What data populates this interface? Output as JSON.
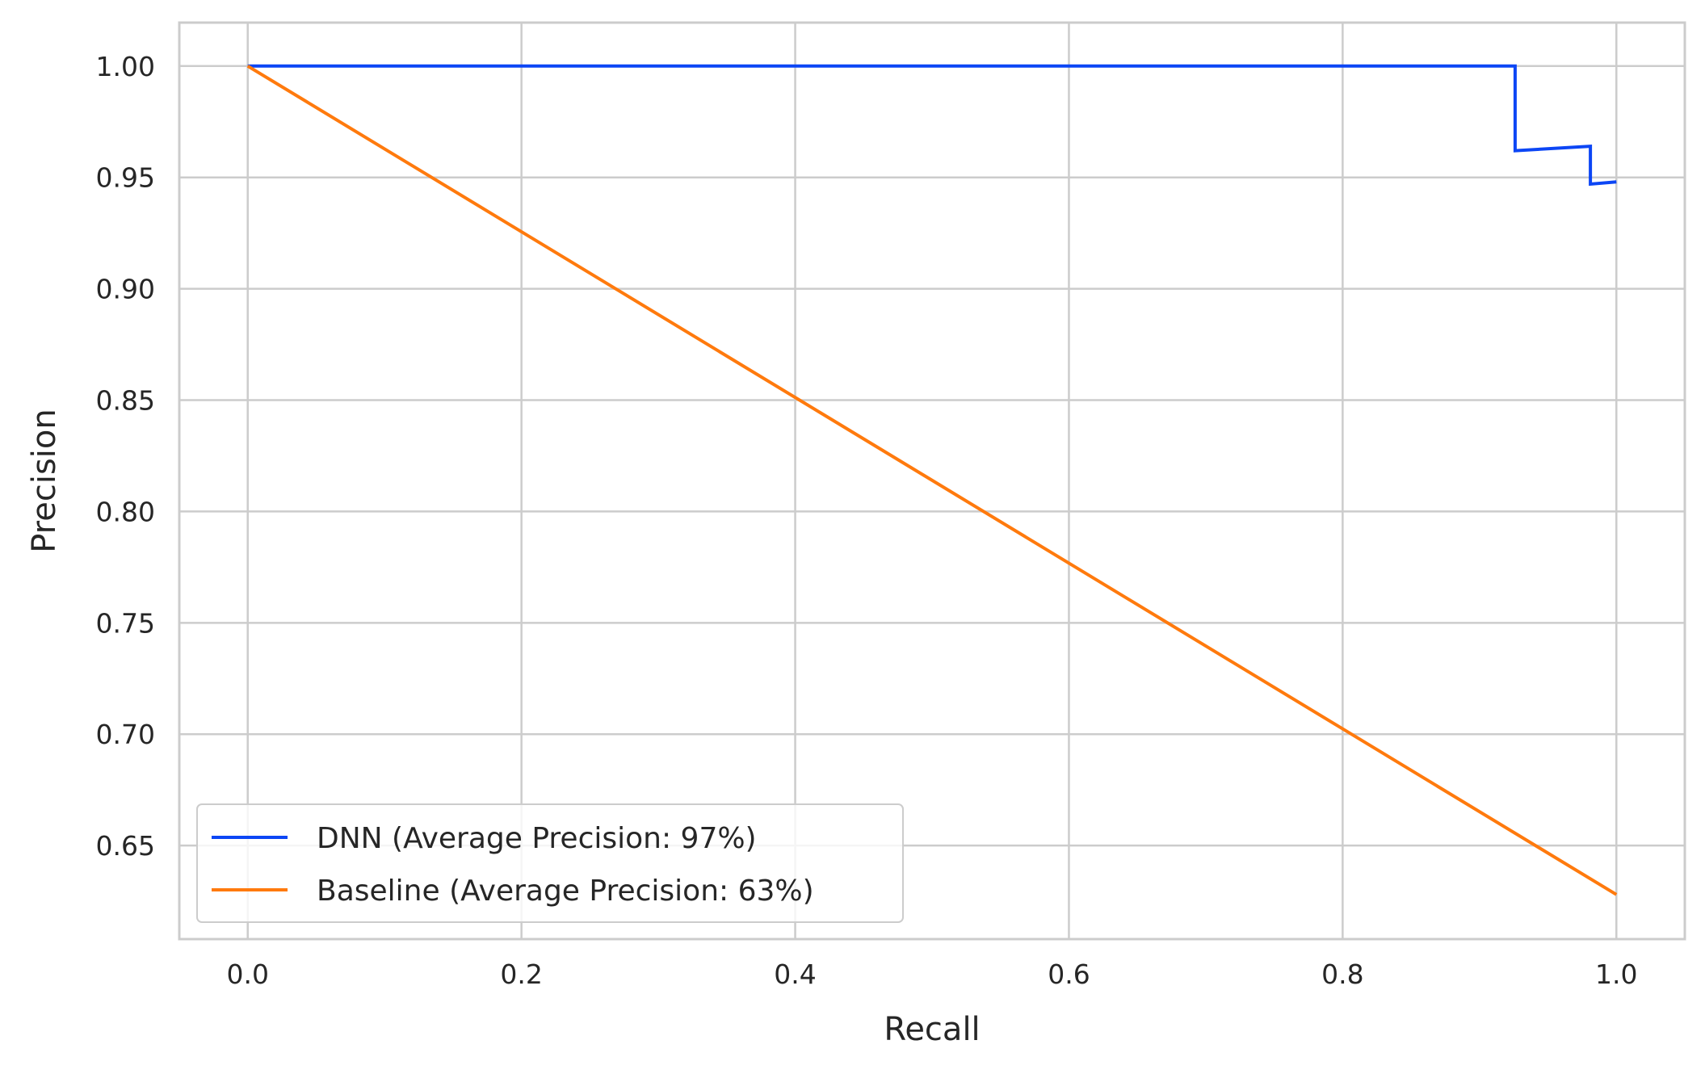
{
  "chart_data": {
    "type": "line",
    "title": "",
    "xlabel": "Recall",
    "ylabel": "Precision",
    "xlim": [
      -0.05,
      1.05
    ],
    "ylim": [
      0.608,
      1.0195
    ],
    "xticks": [
      0.0,
      0.2,
      0.4,
      0.6,
      0.8,
      1.0
    ],
    "xtick_labels": [
      "0.0",
      "0.2",
      "0.4",
      "0.6",
      "0.8",
      "1.0"
    ],
    "yticks": [
      0.65,
      0.7,
      0.75,
      0.8,
      0.85,
      0.9,
      0.95,
      1.0
    ],
    "ytick_labels": [
      "0.65",
      "0.70",
      "0.75",
      "0.80",
      "0.85",
      "0.90",
      "0.95",
      "1.00"
    ],
    "grid": true,
    "legend_position": "lower-left",
    "series": [
      {
        "name": "DNN (Average Precision: 97%)",
        "color": "#0c46f5",
        "x": [
          0.0,
          0.926,
          0.926,
          0.981,
          0.981,
          1.0
        ],
        "y": [
          1.0,
          1.0,
          0.962,
          0.964,
          0.947,
          0.948
        ]
      },
      {
        "name": "Baseline (Average Precision: 63%)",
        "color": "#ff7a0d",
        "x": [
          0.0,
          1.0
        ],
        "y": [
          1.0,
          0.628
        ]
      }
    ]
  },
  "colors": {
    "grid": "#cccccc",
    "frame": "#cccccc",
    "text": "#262626"
  }
}
